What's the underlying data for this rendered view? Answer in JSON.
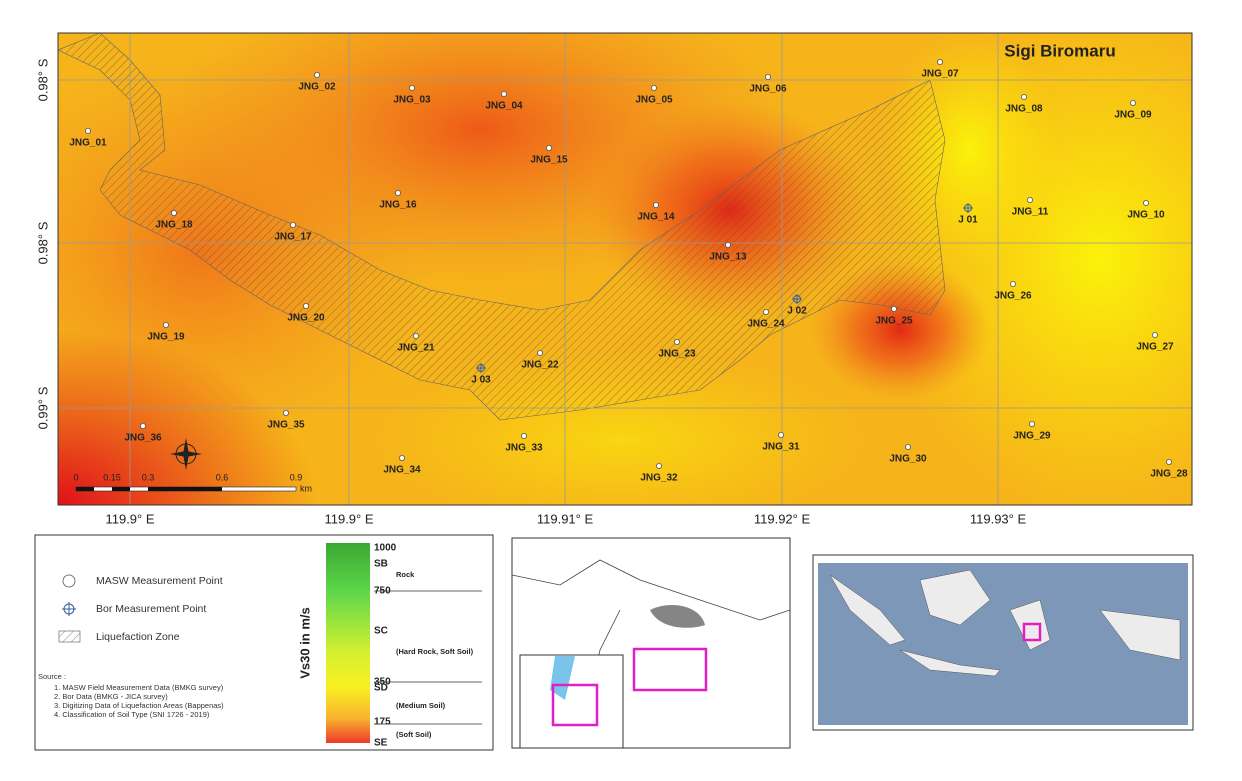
{
  "map": {
    "title": "Sigi Biromaru",
    "lat_labels": [
      "0.98° S",
      "0.98° S",
      "0.99° S"
    ],
    "lon_labels": [
      "119.9° E",
      "119.9° E",
      "119.91° E",
      "119.92° E",
      "119.93° E"
    ],
    "masw_points": [
      "JNG_01",
      "JNG_02",
      "JNG_03",
      "JNG_04",
      "JNG_05",
      "JNG_06",
      "JNG_07",
      "JNG_08",
      "JNG_09",
      "JNG_15",
      "JNG_16",
      "JNG_18",
      "JNG_17",
      "JNG_14",
      "JNG_13",
      "JNG_11",
      "JNG_10",
      "JNG_26",
      "JNG_24",
      "JNG_25",
      "JNG_20",
      "JNG_19",
      "JNG_21",
      "JNG_22",
      "JNG_23",
      "JNG_27",
      "JNG_36",
      "JNG_35",
      "JNG_33",
      "JNG_31",
      "JNG_30",
      "JNG_29",
      "JNG_34",
      "JNG_32",
      "JNG_28"
    ],
    "bor_points": [
      "J 01",
      "J 02",
      "J 03"
    ],
    "scale_bar": {
      "labels": [
        0,
        0.15,
        0.3,
        0.6,
        0.9
      ],
      "unit": "km"
    }
  },
  "legend": {
    "items": [
      "MASW Measurement Point",
      "Bor Measurement Point",
      "Liquefaction Zone"
    ],
    "source_title": "Source :",
    "sources": [
      "1. MASW Field Measurement Data (BMKG survey)",
      "2. Bor Data (BMKG - JICA survey)",
      "3. Digitizing Data of Liquefaction Areas (Bappenas)",
      "4. Classification of Soil Type (SNI 1726 - 2019)"
    ]
  },
  "colorbar": {
    "title": "Vs30 in m/s",
    "ticks": [
      1000,
      750,
      350,
      175
    ],
    "classes": [
      {
        "code": "SB",
        "desc": "Rock"
      },
      {
        "code": "SC",
        "desc": "(Hard Rock, Soft Soil)"
      },
      {
        "code": "SD",
        "desc": "(Medium Soil)"
      },
      {
        "code": "SE",
        "desc": "(Soft Soil)"
      }
    ]
  }
}
